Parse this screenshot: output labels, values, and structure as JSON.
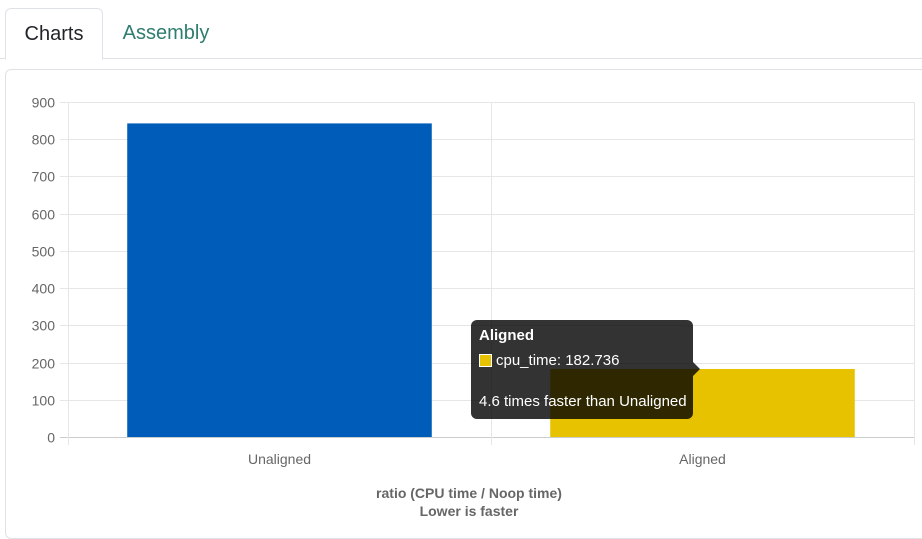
{
  "tabs": [
    {
      "label": "Charts",
      "active": true
    },
    {
      "label": "Assembly",
      "active": false
    }
  ],
  "chart_data": {
    "type": "bar",
    "categories": [
      "Unaligned",
      "Aligned"
    ],
    "values": [
      842.5,
      182.736
    ],
    "colors": [
      "#005cb9",
      "#e6c200"
    ],
    "ylim": [
      0,
      900
    ],
    "yticks": [
      0,
      100,
      200,
      300,
      400,
      500,
      600,
      700,
      800,
      900
    ],
    "grid": true,
    "xlabel": "ratio (CPU time / Noop time)",
    "xlabel_sub": "Lower is faster"
  },
  "tooltip": {
    "title": "Aligned",
    "series_label": "cpu_time: 182.736",
    "swatch_color": "#e6c200",
    "footer": "4.6 times faster than Unaligned"
  }
}
